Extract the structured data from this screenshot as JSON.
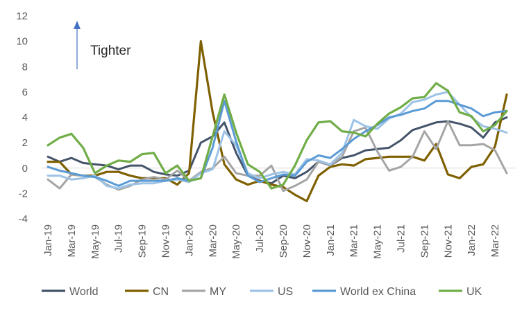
{
  "chart_data": {
    "type": "line",
    "title": "",
    "xlabel": "",
    "ylabel": "",
    "ylim": [
      -4,
      12
    ],
    "yticks": [
      -4,
      -2,
      0,
      2,
      4,
      6,
      8,
      10,
      12
    ],
    "grid": false,
    "legend_position": "bottom",
    "x": [
      "Jan-19",
      "Feb-19",
      "Mar-19",
      "Apr-19",
      "May-19",
      "Jun-19",
      "Jul-19",
      "Aug-19",
      "Sep-19",
      "Oct-19",
      "Nov-19",
      "Dec-19",
      "Jan-20",
      "Feb-20",
      "Mar-20",
      "Apr-20",
      "May-20",
      "Jun-20",
      "Jul-20",
      "Aug-20",
      "Sep-20",
      "Oct-20",
      "Nov-20",
      "Dec-20",
      "Jan-21",
      "Feb-21",
      "Mar-21",
      "Apr-21",
      "May-21",
      "Jun-21",
      "Jul-21",
      "Aug-21",
      "Sep-21",
      "Oct-21",
      "Nov-21",
      "Dec-21",
      "Jan-22",
      "Feb-22",
      "Mar-22",
      "Apr-22"
    ],
    "x_tick_labels": [
      "Jan-19",
      "Mar-19",
      "May-19",
      "Jul-19",
      "Sep-19",
      "Nov-19",
      "Jan-20",
      "Mar-20",
      "May-20",
      "Jul-20",
      "Sep-20",
      "Nov-20",
      "Jan-21",
      "Mar-21",
      "May-21",
      "Jul-21",
      "Sep-21",
      "Nov-21",
      "Jan-22",
      "Mar-22"
    ],
    "annotation": {
      "text": "Tighter",
      "arrow": "up",
      "arrow_color": "#4472C4"
    },
    "series": [
      {
        "name": "World",
        "color": "#44546A",
        "values": [
          0.9,
          0.5,
          0.8,
          0.4,
          0.3,
          0.2,
          -0.1,
          0.2,
          0.2,
          -0.3,
          -0.5,
          -0.6,
          -0.2,
          2.0,
          2.5,
          3.6,
          1.2,
          -0.6,
          -1.0,
          -1.2,
          -0.6,
          -0.8,
          -0.3,
          0.5,
          0.2,
          0.8,
          1.0,
          1.4,
          1.5,
          1.6,
          2.2,
          3.0,
          3.3,
          3.6,
          3.7,
          3.5,
          3.2,
          2.4,
          3.6,
          4.0
        ]
      },
      {
        "name": "CN",
        "color": "#7F6000",
        "values": [
          0.5,
          0.5,
          -0.5,
          -0.6,
          -0.6,
          -0.3,
          -0.3,
          -0.6,
          -0.8,
          -0.8,
          -0.8,
          -1.3,
          -0.4,
          10.0,
          4.4,
          0.3,
          -0.9,
          -1.3,
          -1.0,
          -1.3,
          -1.5,
          -2.1,
          -2.6,
          -0.6,
          0.1,
          0.3,
          0.2,
          0.7,
          0.8,
          0.9,
          0.9,
          0.9,
          0.6,
          1.9,
          -0.5,
          -0.8,
          0.1,
          0.3,
          1.7,
          5.8
        ]
      },
      {
        "name": "MY",
        "color": "#A5A5A5",
        "values": [
          -0.9,
          -1.6,
          -0.5,
          -0.6,
          -0.7,
          -1.3,
          -1.7,
          -1.4,
          -0.9,
          -0.7,
          -0.9,
          -0.2,
          -1.0,
          -0.3,
          0.0,
          0.9,
          -0.4,
          -0.6,
          -0.6,
          0.2,
          -1.8,
          -1.4,
          -0.9,
          0.5,
          0.2,
          0.9,
          2.9,
          3.2,
          1.3,
          -0.2,
          0.1,
          0.9,
          2.9,
          1.5,
          3.7,
          1.8,
          1.8,
          1.9,
          1.4,
          -0.4
        ]
      },
      {
        "name": "US",
        "color": "#9DC3E6",
        "values": [
          -0.6,
          -0.6,
          -0.9,
          -0.8,
          -0.6,
          -1.4,
          -1.6,
          -1.3,
          -1.2,
          -1.2,
          -1.0,
          -0.9,
          -1.1,
          -0.4,
          -0.1,
          2.9,
          1.8,
          -0.4,
          -0.8,
          -0.5,
          -0.3,
          -0.5,
          0.7,
          0.6,
          0.3,
          1.2,
          3.8,
          3.3,
          3.1,
          3.9,
          4.3,
          5.2,
          5.4,
          5.8,
          6.0,
          5.0,
          4.0,
          3.3,
          3.1,
          2.8
        ]
      },
      {
        "name": "World ex China",
        "color": "#5B9BD5",
        "values": [
          0.1,
          -0.2,
          -0.4,
          -0.6,
          -0.7,
          -1.0,
          -1.4,
          -1.0,
          -1.0,
          -1.0,
          -1.0,
          -0.8,
          -1.0,
          -0.8,
          1.6,
          5.3,
          2.1,
          -0.6,
          -1.1,
          -0.8,
          -0.5,
          -0.6,
          0.5,
          1.0,
          0.8,
          1.5,
          2.3,
          2.9,
          3.4,
          4.0,
          4.2,
          4.5,
          4.7,
          5.3,
          5.3,
          5.0,
          4.7,
          4.1,
          4.4,
          4.5
        ]
      },
      {
        "name": "UK",
        "color": "#70AD47",
        "values": [
          1.8,
          2.4,
          2.7,
          1.6,
          -0.4,
          0.2,
          0.6,
          0.5,
          1.1,
          1.2,
          -0.4,
          0.2,
          -1.0,
          -0.8,
          2.5,
          5.8,
          2.8,
          0.3,
          -0.3,
          -1.6,
          -1.3,
          0.2,
          2.2,
          3.6,
          3.7,
          2.9,
          2.8,
          2.5,
          3.5,
          4.3,
          4.8,
          5.5,
          5.6,
          6.7,
          6.1,
          4.4,
          4.1,
          2.9,
          3.4,
          4.5
        ]
      }
    ]
  }
}
